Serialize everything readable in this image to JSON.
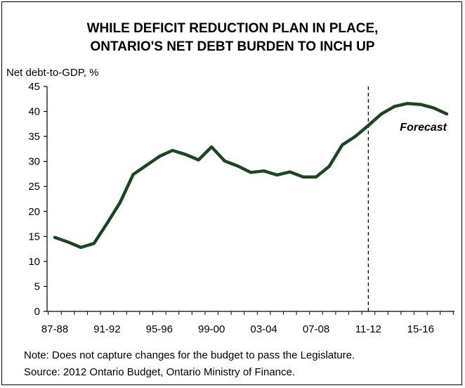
{
  "chart_data": {
    "type": "line",
    "title": [
      "WHILE DEFICIT REDUCTION PLAN IN PLACE,",
      "ONTARIO'S NET DEBT BURDEN TO INCH UP"
    ],
    "ylabel": "Net debt-to-GDP, %",
    "xlabel": "",
    "ylim": [
      0,
      45
    ],
    "yticks": [
      0,
      5,
      10,
      15,
      20,
      25,
      30,
      35,
      40,
      45
    ],
    "categories": [
      "87-88",
      "88-89",
      "89-90",
      "90-91",
      "91-92",
      "92-93",
      "93-94",
      "94-95",
      "95-96",
      "96-97",
      "97-98",
      "98-99",
      "99-00",
      "00-01",
      "01-02",
      "02-03",
      "03-04",
      "04-05",
      "05-06",
      "06-07",
      "07-08",
      "08-09",
      "09-10",
      "10-11",
      "11-12",
      "12-13",
      "13-14",
      "14-15",
      "15-16",
      "16-17",
      "17-18"
    ],
    "xtick_labels": [
      "87-88",
      "91-92",
      "95-96",
      "99-00",
      "03-04",
      "07-08",
      "11-12",
      "15-16"
    ],
    "series": [
      {
        "values": [
          14.8,
          13.9,
          12.8,
          13.6,
          17.6,
          21.8,
          27.4,
          29.2,
          31.0,
          32.2,
          31.4,
          30.3,
          32.9,
          30.1,
          29.1,
          27.8,
          28.1,
          27.3,
          27.9,
          26.9,
          26.9,
          29.0,
          33.3,
          35.0,
          37.2,
          39.5,
          41.0,
          41.6,
          41.4,
          40.7,
          39.5
        ],
        "color": "#1e4522"
      }
    ],
    "forecast_start_category": "11-12",
    "annotation": "Forecast",
    "grid": false
  },
  "notes": [
    "Note: Does not capture changes for the budget to pass the Legislature.",
    "Source: 2012 Ontario Budget, Ontario Ministry of Finance."
  ]
}
